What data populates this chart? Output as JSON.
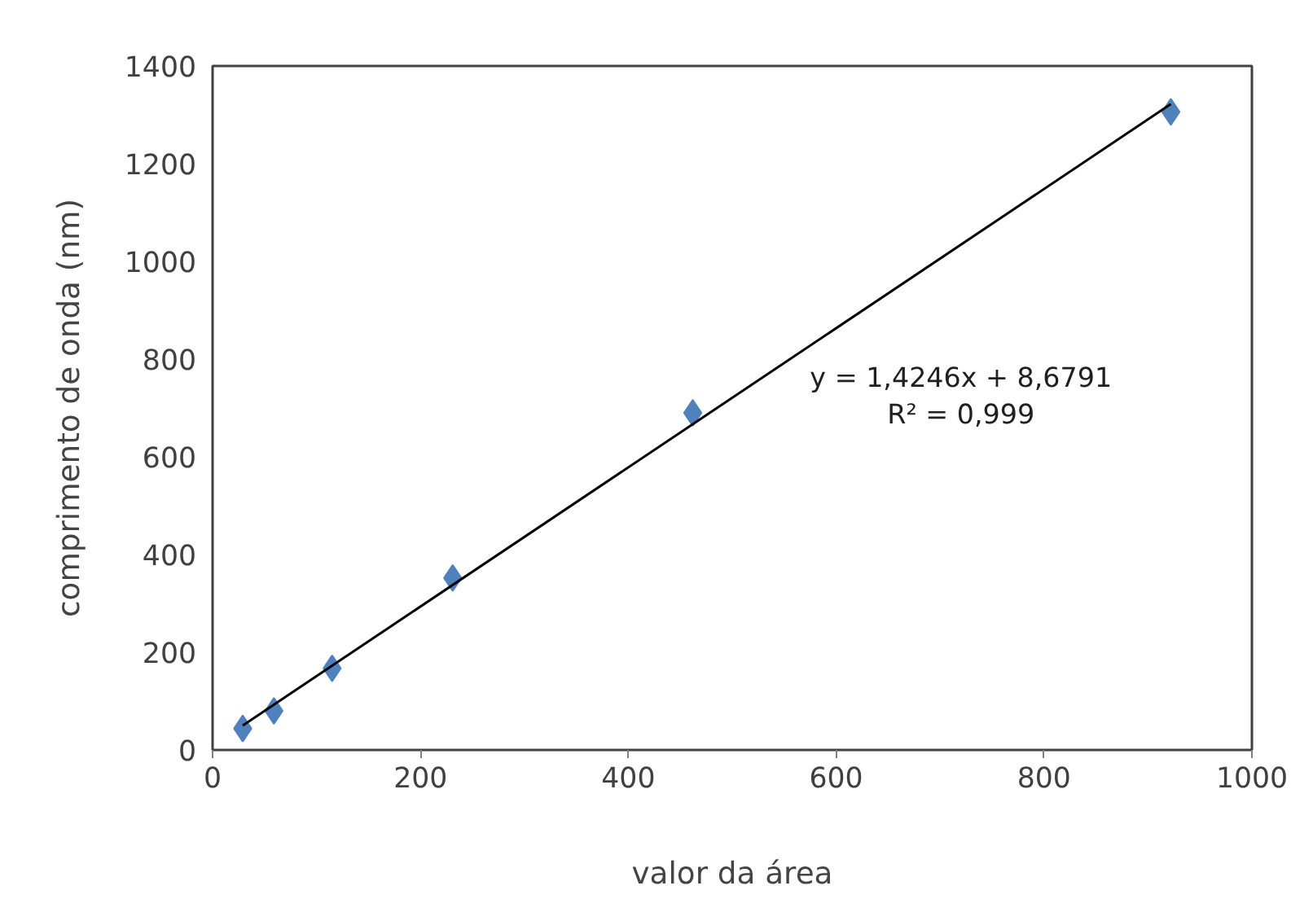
{
  "chart_data": {
    "type": "scatter",
    "xlabel": "valor da área",
    "ylabel": "comprimento de onda (nm)",
    "xlim": [
      0,
      1000
    ],
    "xticks": [
      0,
      200,
      400,
      600,
      800,
      1000
    ],
    "ylim": [
      0,
      1400
    ],
    "yticks": [
      0,
      200,
      400,
      600,
      800,
      1000,
      1200,
      1400
    ],
    "grid": false,
    "annotations": [
      "y = 1,4246x + 8,6791",
      "R² = 0,999"
    ],
    "series": [
      {
        "color": "#4f81bd",
        "marker": "diamond",
        "x": [
          29,
          59,
          115,
          231,
          462,
          922
        ],
        "values": [
          44,
          80,
          167,
          352,
          690,
          1306
        ]
      },
      {
        "type": "line",
        "color": "#000000",
        "line_style": "solid",
        "x": [
          29,
          922
        ],
        "values": [
          50,
          1322
        ]
      }
    ]
  }
}
